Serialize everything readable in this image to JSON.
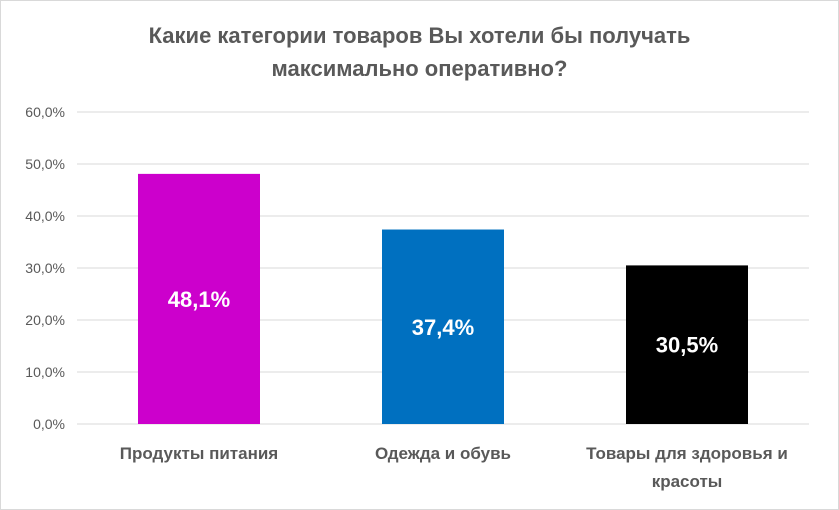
{
  "chart_data": {
    "type": "bar",
    "title": "Какие категории товаров Вы хотели бы получать\nмаксимально оперативно?",
    "categories": [
      [
        "Продукты питания"
      ],
      [
        "Одежда и обувь"
      ],
      [
        "Товары для здоровья и",
        "красоты"
      ]
    ],
    "values": [
      48.1,
      37.4,
      30.5
    ],
    "data_labels": [
      "48,1%",
      "37,4%",
      "30,5%"
    ],
    "colors": [
      "#cc00cc",
      "#0070c0",
      "#000000"
    ],
    "ylim": [
      0,
      60
    ],
    "yticks": [
      0,
      10,
      20,
      30,
      40,
      50,
      60
    ],
    "ytick_labels": [
      "0,0%",
      "10,0%",
      "20,0%",
      "30,0%",
      "40,0%",
      "50,0%",
      "60,0%"
    ],
    "grid": true,
    "legend": "none"
  }
}
